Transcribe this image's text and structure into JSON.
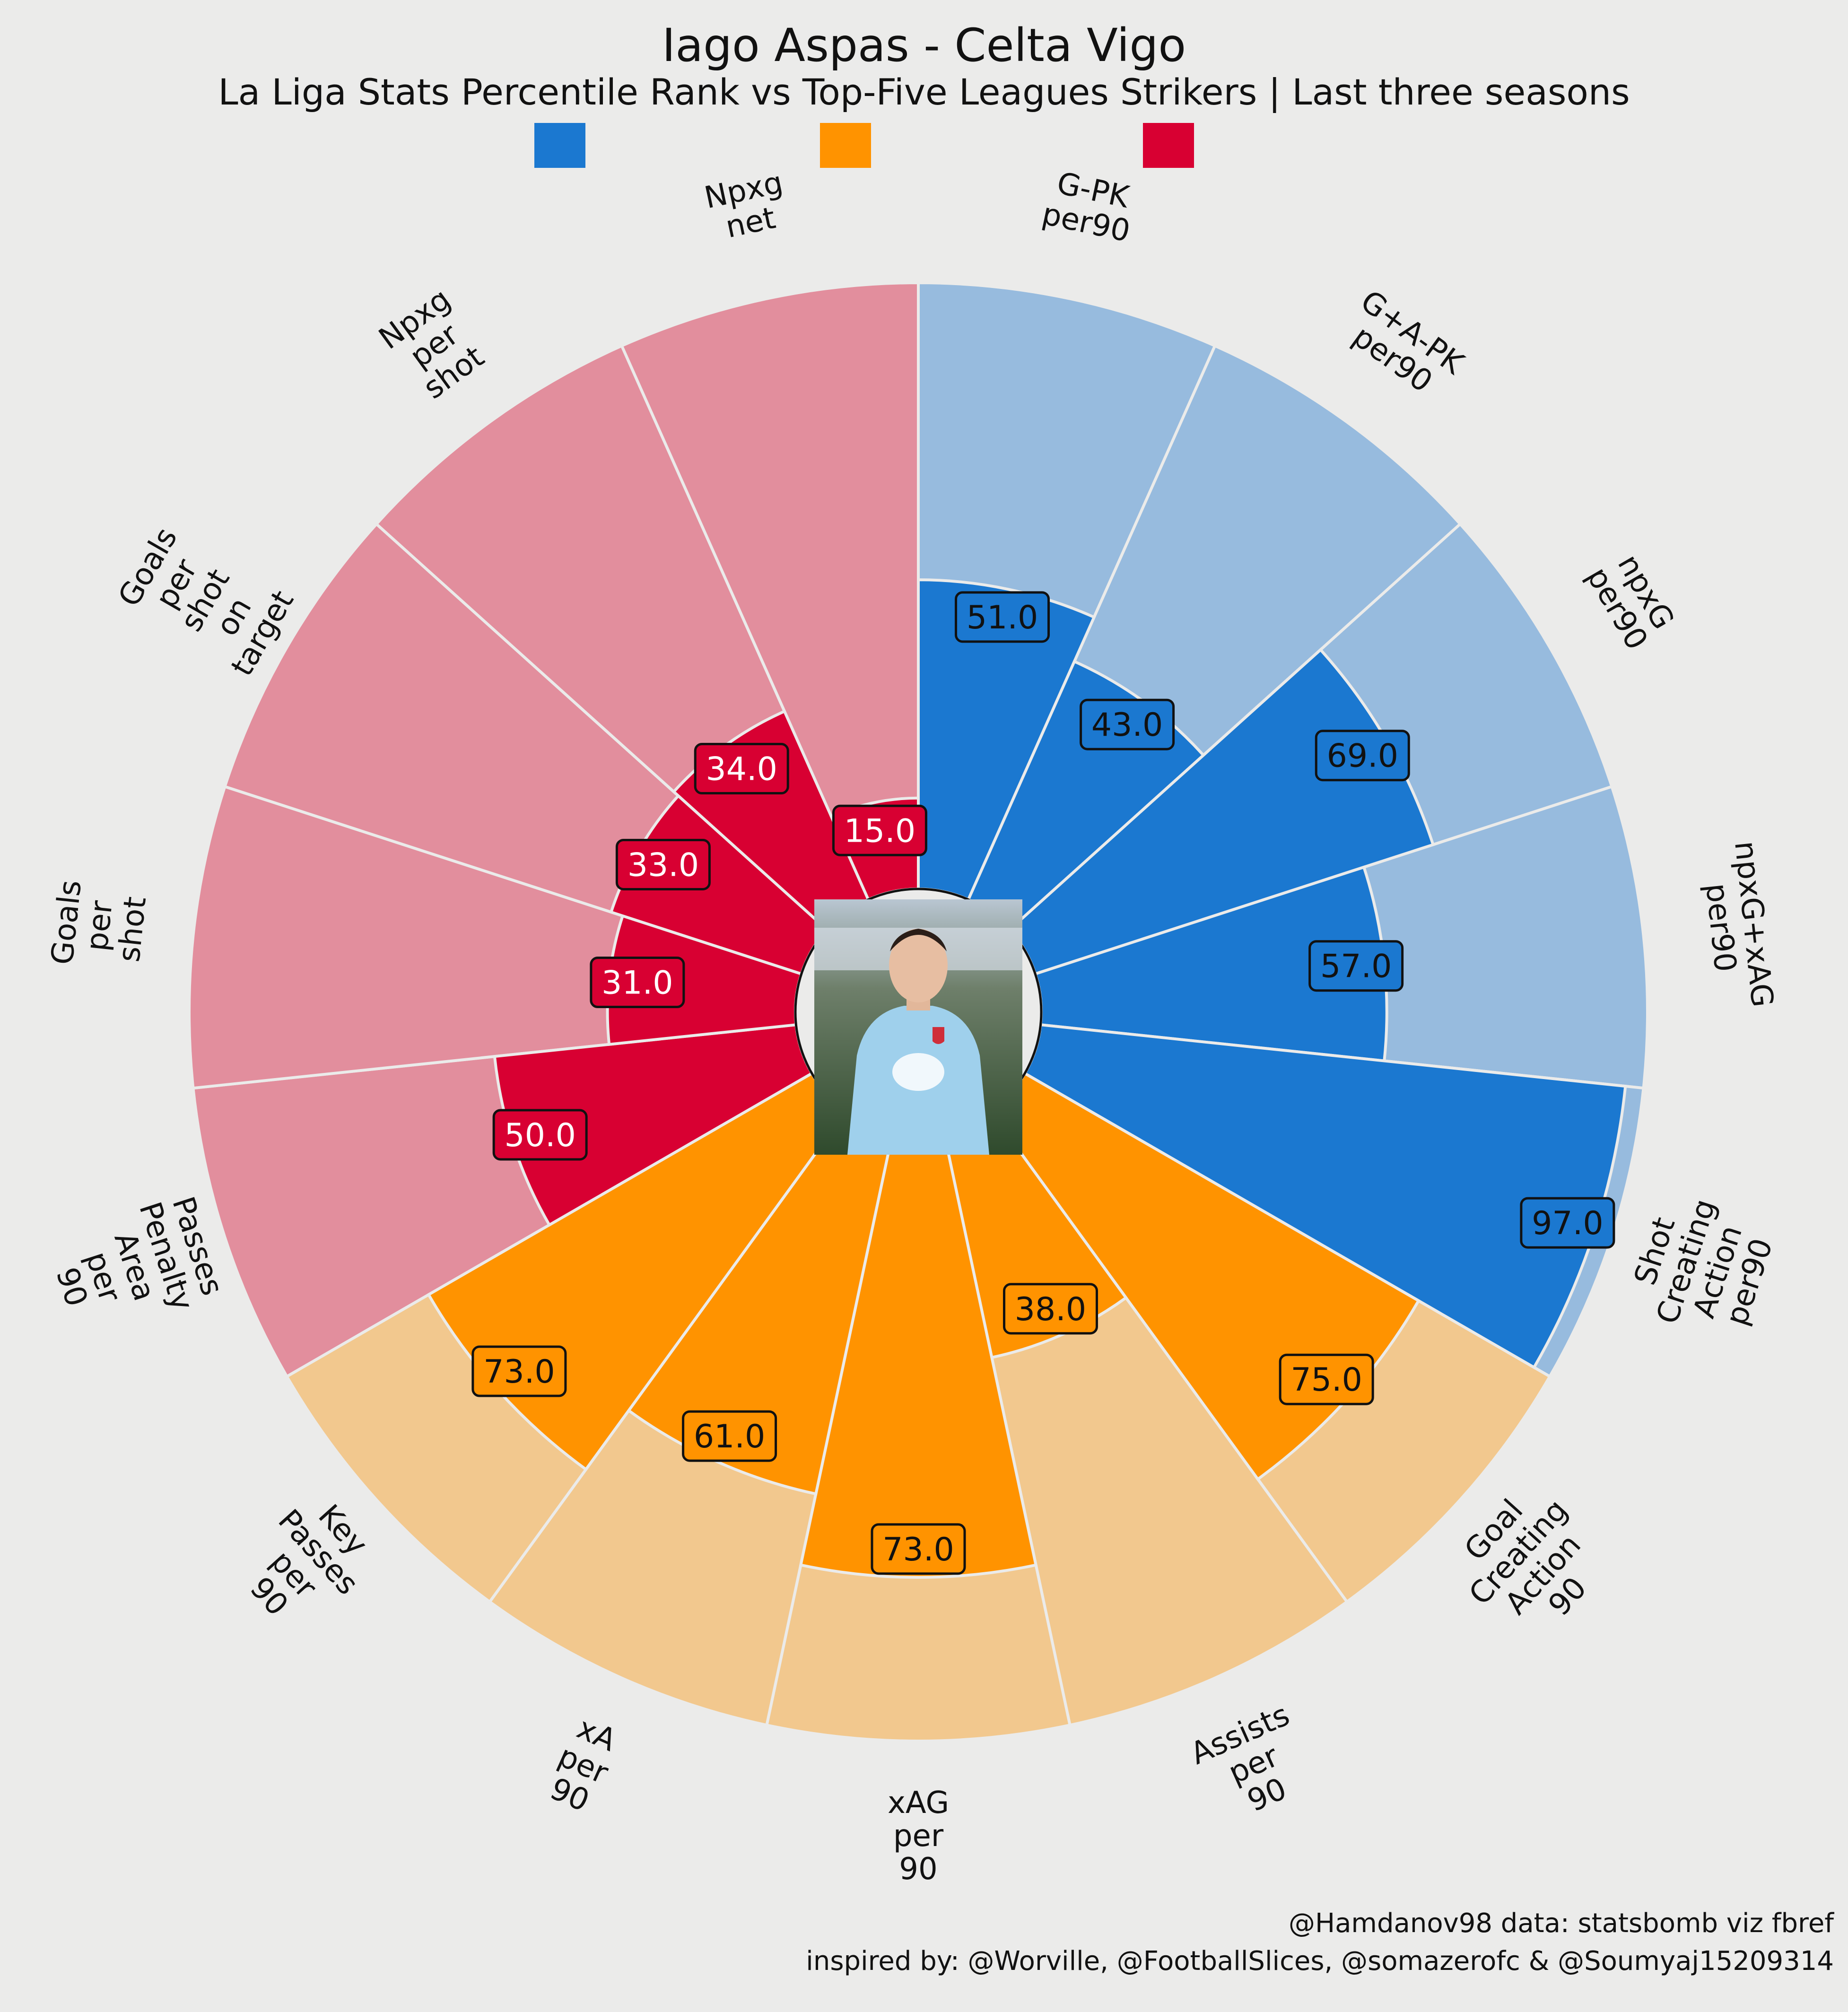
{
  "title": "Iago Aspas - Celta Vigo",
  "subtitle": "La Liga Stats Percentile Rank vs Top-Five Leagues Strikers | Last three seasons",
  "credits": {
    "line1": "@Hamdanov98 data: statsbomb viz fbref",
    "line2": "inspired by: @Worville, @FootballSlices, @somazerofc & @Soumyaj15209314"
  },
  "legend": [
    {
      "color": "#1b78d0",
      "label": ""
    },
    {
      "color": "#ff9300",
      "label": ""
    },
    {
      "color": "#d80032",
      "label": ""
    }
  ],
  "player_photo": {
    "icon": "player-photo"
  },
  "chart_data": {
    "type": "polar-bar",
    "title": "Iago Aspas - Celta Vigo",
    "subtitle": "La Liga Stats Percentile Rank vs Top-Five Leagues Strikers | Last three seasons",
    "rlim": [
      0,
      100
    ],
    "categories": [
      {
        "label": "G-PK\nper90",
        "value": 51.0,
        "group": "blue"
      },
      {
        "label": "G+A-PK\nper90",
        "value": 43.0,
        "group": "blue"
      },
      {
        "label": "npxG\nper90",
        "value": 69.0,
        "group": "blue"
      },
      {
        "label": "npxG+xAG\nper90",
        "value": 57.0,
        "group": "blue"
      },
      {
        "label": "Shot\nCreating\nAction\nper90",
        "value": 97.0,
        "group": "blue"
      },
      {
        "label": "Goal\nCreating\nAction\n90",
        "value": 75.0,
        "group": "orange"
      },
      {
        "label": "Assists\nper\n90",
        "value": 38.0,
        "group": "orange"
      },
      {
        "label": "xAG\nper\n90",
        "value": 73.0,
        "group": "orange"
      },
      {
        "label": "xA\nper\n90",
        "value": 61.0,
        "group": "orange"
      },
      {
        "label": "Key\nPasses\nper\n90",
        "value": 73.0,
        "group": "orange"
      },
      {
        "label": "Passes\nPenalty\nArea\nper\n90",
        "value": 50.0,
        "group": "red"
      },
      {
        "label": "Goals\nper\nshot",
        "value": 31.0,
        "group": "red"
      },
      {
        "label": "Goals\nper\nshot\non\ntarget",
        "value": 33.0,
        "group": "red"
      },
      {
        "label": "Npxg\nper\nshot",
        "value": 34.0,
        "group": "red"
      },
      {
        "label": "Npxg\nnet",
        "value": 15.0,
        "group": "red"
      }
    ],
    "groups": {
      "blue": {
        "color": "#1b78d0",
        "bg": "#97bbde",
        "text": "#111111"
      },
      "orange": {
        "color": "#ff9300",
        "bg": "#f2c88e",
        "text": "#111111"
      },
      "red": {
        "color": "#d80032",
        "bg": "#e28e9d",
        "text": "#ffffff"
      }
    }
  }
}
